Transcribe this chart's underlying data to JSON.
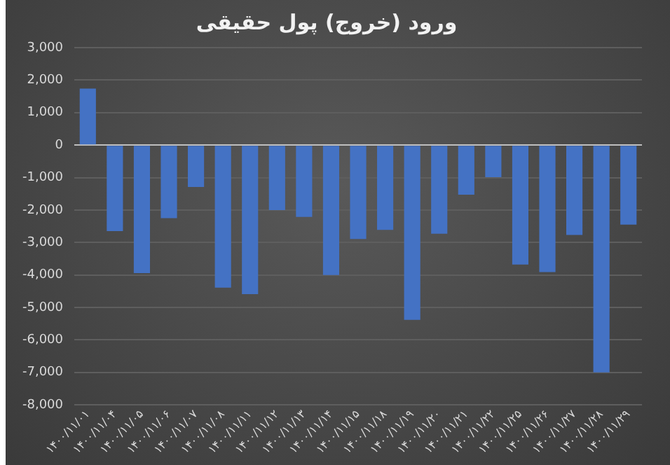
{
  "chart_data": {
    "type": "bar",
    "title": "ورود (خروج) پول حقیقی",
    "categories": [
      "۱۴۰۰/۱۱/۰۱",
      "۱۴۰۰/۱۱/۰۴",
      "۱۴۰۰/۱۱/۰۵",
      "۱۴۰۰/۱۱/۰۶",
      "۱۴۰۰/۱۱/۰۷",
      "۱۴۰۰/۱۱/۰۸",
      "۱۴۰۰/۱۱/۱۱",
      "۱۴۰۰/۱۱/۱۲",
      "۱۴۰۰/۱۱/۱۳",
      "۱۴۰۰/۱۱/۱۴",
      "۱۴۰۰/۱۱/۱۵",
      "۱۴۰۰/۱۱/۱۸",
      "۱۴۰۰/۱۱/۱۹",
      "۱۴۰۰/۱۱/۲۰",
      "۱۴۰۰/۱۱/۲۱",
      "۱۴۰۰/۱۱/۲۲",
      "۱۴۰۰/۱۱/۲۵",
      "۱۴۰۰/۱۱/۲۶",
      "۱۴۰۰/۱۱/۲۷",
      "۱۴۰۰/۱۱/۲۸",
      "۱۴۰۰/۱۱/۲۹"
    ],
    "values": [
      1740,
      -2650,
      -3940,
      -2250,
      -1290,
      -4390,
      -4590,
      -2000,
      -2210,
      -4000,
      -2890,
      -2610,
      -5380,
      -2730,
      -1530,
      -990,
      -3680,
      -3910,
      -2770,
      -7000,
      -2450
    ],
    "color": "#4472c4",
    "ylim": [
      -8000,
      3000
    ],
    "yticks": [
      {
        "value": -8000,
        "label": "-8,000"
      },
      {
        "value": -7000,
        "label": "-7,000"
      },
      {
        "value": -6000,
        "label": "-6,000"
      },
      {
        "value": -5000,
        "label": "-5,000"
      },
      {
        "value": -4000,
        "label": "-4,000"
      },
      {
        "value": -3000,
        "label": "-3,000"
      },
      {
        "value": -2000,
        "label": "-2,000"
      },
      {
        "value": -1000,
        "label": "-1,000"
      },
      {
        "value": 0,
        "label": "0"
      },
      {
        "value": 1000,
        "label": "1,000"
      },
      {
        "value": 2000,
        "label": "2,000"
      },
      {
        "value": 3000,
        "label": "3,000"
      }
    ],
    "grid": "y"
  }
}
